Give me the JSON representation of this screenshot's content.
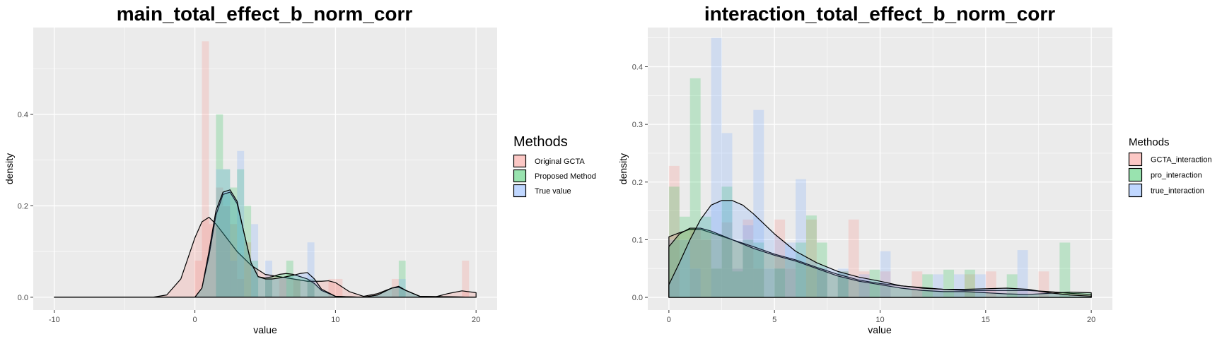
{
  "chart_data": [
    {
      "type": "histogram-density",
      "title": "main_total_effect_b_norm_corr",
      "xlabel": "value",
      "ylabel": "density",
      "xlim": [
        -11.5,
        21.5
      ],
      "ylim": [
        -0.028,
        0.59
      ],
      "x_ticks": [
        -10,
        0,
        10,
        20
      ],
      "x_tick_labels": [
        "-10",
        "0",
        "10",
        "20"
      ],
      "y_ticks": [
        0.0,
        0.2,
        0.4
      ],
      "y_tick_labels": [
        "0.0",
        "0.2",
        "0.4"
      ],
      "grid": true,
      "legend": {
        "title": "Methods",
        "position": "right"
      },
      "bin_width": 0.5,
      "series": [
        {
          "name": "Original GCTA",
          "color": "#F8766D",
          "bins": [
            [
              0.5,
              0.56
            ],
            [
              0.0,
              0.08
            ],
            [
              1.0,
              0.16
            ],
            [
              1.5,
              0.24
            ],
            [
              2.0,
              0.2
            ],
            [
              2.5,
              0.16
            ],
            [
              3.0,
              0.04
            ],
            [
              3.5,
              0.12
            ],
            [
              5.0,
              0.04
            ],
            [
              6.0,
              0.04
            ],
            [
              7.0,
              0.04
            ],
            [
              8.0,
              0.04
            ],
            [
              9.5,
              0.04
            ],
            [
              10.0,
              0.04
            ],
            [
              14.0,
              0.04
            ],
            [
              19.0,
              0.08
            ]
          ],
          "density": [
            [
              -10,
              0.0
            ],
            [
              -3,
              0.0
            ],
            [
              -2,
              0.005
            ],
            [
              -1,
              0.04
            ],
            [
              0,
              0.13
            ],
            [
              0.5,
              0.165
            ],
            [
              1,
              0.175
            ],
            [
              1.5,
              0.16
            ],
            [
              2,
              0.14
            ],
            [
              3,
              0.1
            ],
            [
              4,
              0.07
            ],
            [
              5,
              0.05
            ],
            [
              6,
              0.045
            ],
            [
              7,
              0.04
            ],
            [
              8,
              0.035
            ],
            [
              9,
              0.035
            ],
            [
              9.5,
              0.036
            ],
            [
              10,
              0.032
            ],
            [
              11,
              0.012
            ],
            [
              12,
              0.002
            ],
            [
              13,
              0.008
            ],
            [
              14,
              0.02
            ],
            [
              14.5,
              0.022
            ],
            [
              15,
              0.015
            ],
            [
              16,
              0.002
            ],
            [
              17,
              0.0
            ],
            [
              18,
              0.008
            ],
            [
              19,
              0.014
            ],
            [
              20,
              0.01
            ]
          ]
        },
        {
          "name": "Proposed Method",
          "color": "#00BA38",
          "bins": [
            [
              1.5,
              0.4
            ],
            [
              2.0,
              0.28
            ],
            [
              2.5,
              0.24
            ],
            [
              3.0,
              0.28
            ],
            [
              3.5,
              0.2
            ],
            [
              4.0,
              0.08
            ],
            [
              5.0,
              0.04
            ],
            [
              6.5,
              0.08
            ],
            [
              7.0,
              0.04
            ],
            [
              8.0,
              0.04
            ],
            [
              14.5,
              0.08
            ]
          ],
          "density": [
            [
              -10,
              0.0
            ],
            [
              0,
              0.0
            ],
            [
              0.5,
              0.02
            ],
            [
              1,
              0.09
            ],
            [
              1.5,
              0.18
            ],
            [
              2,
              0.225
            ],
            [
              2.5,
              0.23
            ],
            [
              3,
              0.205
            ],
            [
              3.5,
              0.14
            ],
            [
              4,
              0.075
            ],
            [
              4.5,
              0.045
            ],
            [
              5,
              0.042
            ],
            [
              5.5,
              0.045
            ],
            [
              6,
              0.05
            ],
            [
              6.5,
              0.052
            ],
            [
              7,
              0.05
            ],
            [
              7.5,
              0.045
            ],
            [
              8,
              0.04
            ],
            [
              8.5,
              0.03
            ],
            [
              9,
              0.015
            ],
            [
              10,
              0.002
            ],
            [
              12,
              0.0
            ],
            [
              13,
              0.005
            ],
            [
              14,
              0.02
            ],
            [
              14.5,
              0.022
            ],
            [
              15,
              0.015
            ],
            [
              16,
              0.002
            ],
            [
              20,
              0.0
            ]
          ]
        },
        {
          "name": "True value",
          "color": "#619CFF",
          "bins": [
            [
              1.5,
              0.28
            ],
            [
              2.0,
              0.28
            ],
            [
              2.5,
              0.08
            ],
            [
              3.0,
              0.32
            ],
            [
              4.0,
              0.16
            ],
            [
              5.0,
              0.08
            ],
            [
              8.0,
              0.12
            ],
            [
              14.5,
              0.04
            ]
          ],
          "density": [
            [
              -10,
              0.0
            ],
            [
              0,
              0.0
            ],
            [
              0.5,
              0.02
            ],
            [
              1,
              0.1
            ],
            [
              1.5,
              0.19
            ],
            [
              2,
              0.23
            ],
            [
              2.5,
              0.235
            ],
            [
              3,
              0.21
            ],
            [
              3.5,
              0.14
            ],
            [
              4,
              0.075
            ],
            [
              4.5,
              0.045
            ],
            [
              5,
              0.04
            ],
            [
              5.5,
              0.04
            ],
            [
              6,
              0.042
            ],
            [
              6.5,
              0.045
            ],
            [
              7,
              0.048
            ],
            [
              7.5,
              0.052
            ],
            [
              8,
              0.054
            ],
            [
              8.5,
              0.04
            ],
            [
              9,
              0.018
            ],
            [
              10,
              0.002
            ],
            [
              12,
              0.0
            ],
            [
              13,
              0.005
            ],
            [
              14,
              0.02
            ],
            [
              14.5,
              0.024
            ],
            [
              15,
              0.015
            ],
            [
              16,
              0.002
            ],
            [
              20,
              0.0
            ]
          ]
        }
      ]
    },
    {
      "type": "histogram-density",
      "title": "interaction_total_effect_b_norm_corr",
      "xlabel": "value",
      "ylabel": "density",
      "xlim": [
        -1.0,
        21.0
      ],
      "ylim": [
        -0.022,
        0.468
      ],
      "x_ticks": [
        0,
        5,
        10,
        15,
        20
      ],
      "x_tick_labels": [
        "0",
        "5",
        "10",
        "15",
        "20"
      ],
      "y_ticks": [
        0.0,
        0.1,
        0.2,
        0.3,
        0.4
      ],
      "y_tick_labels": [
        "0.0",
        "0.1",
        "0.2",
        "0.3",
        "0.4"
      ],
      "grid": true,
      "legend": {
        "title": "Methods",
        "position": "right"
      },
      "bin_width": 0.5,
      "series": [
        {
          "name": "GCTA_interaction",
          "color": "#F8766D",
          "bins": [
            [
              0.0,
              0.228
            ],
            [
              1.0,
              0.12
            ],
            [
              1.5,
              0.1
            ],
            [
              2.0,
              0.05
            ],
            [
              2.5,
              0.13
            ],
            [
              3.0,
              0.05
            ],
            [
              3.5,
              0.135
            ],
            [
              4.0,
              0.05
            ],
            [
              5.0,
              0.135
            ],
            [
              5.5,
              0.05
            ],
            [
              6.5,
              0.135
            ],
            [
              7.0,
              0.05
            ],
            [
              8.0,
              0.045
            ],
            [
              8.5,
              0.135
            ],
            [
              9.0,
              0.045
            ],
            [
              10.0,
              0.045
            ],
            [
              11.5,
              0.045
            ],
            [
              14.0,
              0.04
            ],
            [
              15.0,
              0.045
            ],
            [
              17.5,
              0.045
            ]
          ],
          "density": [
            [
              0,
              0.105
            ],
            [
              0.5,
              0.112
            ],
            [
              1,
              0.118
            ],
            [
              1.5,
              0.118
            ],
            [
              2,
              0.112
            ],
            [
              3,
              0.1
            ],
            [
              4,
              0.088
            ],
            [
              5,
              0.075
            ],
            [
              6,
              0.065
            ],
            [
              7,
              0.052
            ],
            [
              8,
              0.04
            ],
            [
              9,
              0.03
            ],
            [
              10,
              0.024
            ],
            [
              11,
              0.02
            ],
            [
              12,
              0.017
            ],
            [
              13,
              0.014
            ],
            [
              14,
              0.012
            ],
            [
              15,
              0.012
            ],
            [
              16,
              0.012
            ],
            [
              17,
              0.012
            ],
            [
              18,
              0.01
            ],
            [
              19,
              0.007
            ],
            [
              20,
              0.005
            ]
          ]
        },
        {
          "name": "pro_interaction",
          "color": "#00BA38",
          "bins": [
            [
              0.0,
              0.192
            ],
            [
              0.5,
              0.14
            ],
            [
              1.0,
              0.38
            ],
            [
              1.5,
              0.14
            ],
            [
              2.0,
              0.05
            ],
            [
              2.5,
              0.192
            ],
            [
              3.0,
              0.045
            ],
            [
              3.5,
              0.1
            ],
            [
              4.0,
              0.095
            ],
            [
              5.0,
              0.05
            ],
            [
              6.0,
              0.095
            ],
            [
              6.5,
              0.142
            ],
            [
              7.0,
              0.095
            ],
            [
              8.0,
              0.045
            ],
            [
              9.5,
              0.048
            ],
            [
              12.0,
              0.04
            ],
            [
              13.0,
              0.048
            ],
            [
              14.0,
              0.048
            ],
            [
              16.0,
              0.04
            ],
            [
              18.5,
              0.095
            ]
          ],
          "density": [
            [
              0,
              0.088
            ],
            [
              0.5,
              0.11
            ],
            [
              1,
              0.12
            ],
            [
              1.5,
              0.12
            ],
            [
              2,
              0.115
            ],
            [
              3,
              0.1
            ],
            [
              4,
              0.085
            ],
            [
              5,
              0.073
            ],
            [
              6,
              0.063
            ],
            [
              7,
              0.05
            ],
            [
              8,
              0.037
            ],
            [
              9,
              0.028
            ],
            [
              10,
              0.022
            ],
            [
              11,
              0.016
            ],
            [
              12,
              0.012
            ],
            [
              13,
              0.01
            ],
            [
              14,
              0.01
            ],
            [
              15,
              0.008
            ],
            [
              16,
              0.006
            ],
            [
              17,
              0.005
            ],
            [
              18,
              0.007
            ],
            [
              19,
              0.009
            ],
            [
              20,
              0.008
            ]
          ]
        },
        {
          "name": "true_interaction",
          "color": "#619CFF",
          "bins": [
            [
              0.0,
              0.1
            ],
            [
              0.5,
              0.1
            ],
            [
              1.0,
              0.05
            ],
            [
              2.0,
              0.45
            ],
            [
              2.5,
              0.285
            ],
            [
              3.0,
              0.05
            ],
            [
              3.5,
              0.125
            ],
            [
              4.0,
              0.325
            ],
            [
              4.5,
              0.05
            ],
            [
              5.0,
              0.05
            ],
            [
              5.5,
              0.095
            ],
            [
              6.0,
              0.205
            ],
            [
              7.0,
              0.05
            ],
            [
              8.0,
              0.05
            ],
            [
              9.0,
              0.04
            ],
            [
              10.0,
              0.08
            ],
            [
              12.5,
              0.04
            ],
            [
              13.5,
              0.04
            ],
            [
              14.5,
              0.04
            ],
            [
              16.5,
              0.082
            ]
          ],
          "density": [
            [
              0,
              0.022
            ],
            [
              0.5,
              0.06
            ],
            [
              1,
              0.1
            ],
            [
              1.5,
              0.135
            ],
            [
              2,
              0.16
            ],
            [
              2.5,
              0.168
            ],
            [
              3,
              0.168
            ],
            [
              3.5,
              0.16
            ],
            [
              4,
              0.145
            ],
            [
              5,
              0.11
            ],
            [
              6,
              0.08
            ],
            [
              7,
              0.06
            ],
            [
              8,
              0.045
            ],
            [
              9,
              0.035
            ],
            [
              10,
              0.028
            ],
            [
              11,
              0.02
            ],
            [
              12,
              0.016
            ],
            [
              13,
              0.014
            ],
            [
              14,
              0.014
            ],
            [
              15,
              0.015
            ],
            [
              16,
              0.016
            ],
            [
              17,
              0.014
            ],
            [
              18,
              0.008
            ],
            [
              19,
              0.004
            ],
            [
              20,
              0.002
            ]
          ]
        }
      ]
    }
  ]
}
